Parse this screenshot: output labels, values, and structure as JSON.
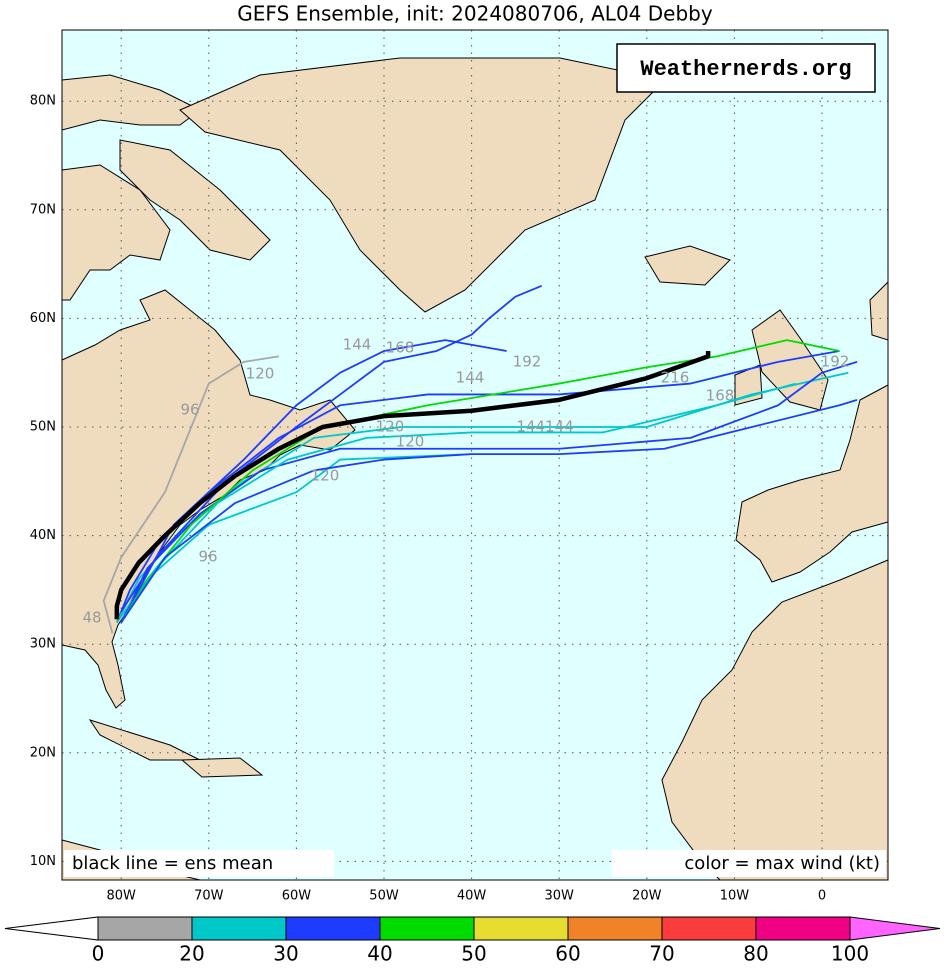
{
  "title": "GEFS Ensemble, init: 2024080706, AL04 Debby",
  "watermark": "Weathernerds.org",
  "notes": {
    "left": "black line = ens mean",
    "right": "color = max wind (kt)"
  },
  "lon_ticks": [
    {
      "value": -80,
      "label": "80W"
    },
    {
      "value": -70,
      "label": "70W"
    },
    {
      "value": -60,
      "label": "60W"
    },
    {
      "value": -50,
      "label": "50W"
    },
    {
      "value": -40,
      "label": "40W"
    },
    {
      "value": -30,
      "label": "30W"
    },
    {
      "value": -20,
      "label": "20W"
    },
    {
      "value": -10,
      "label": "10W"
    },
    0
  ],
  "lat_ticks": [
    {
      "value": 10,
      "label": "10N"
    },
    {
      "value": 20,
      "label": "20N"
    },
    {
      "value": 30,
      "label": "30N"
    },
    {
      "value": 40,
      "label": "40N"
    },
    {
      "value": 50,
      "label": "50N"
    },
    {
      "value": 60,
      "label": "60N"
    },
    {
      "value": 70,
      "label": "70N"
    },
    {
      "value": 80,
      "label": "80N"
    }
  ],
  "colorbar": {
    "levels": [
      0,
      20,
      30,
      40,
      50,
      60,
      70,
      80,
      100
    ],
    "colors": [
      "#ffffff",
      "#a6a6a6",
      "#00c8c8",
      "#1e3cff",
      "#00dc00",
      "#e6dc32",
      "#f08228",
      "#fa3c3c",
      "#f00082",
      "#ff64ff"
    ]
  },
  "hour_labels": [
    "144",
    "168",
    "192",
    "120",
    "96",
    "144",
    "120",
    "120",
    "144144",
    "120",
    "96",
    "216",
    "168",
    "192",
    "48"
  ],
  "mean_track": {
    "lon": [
      -80.5,
      -80.5,
      -80,
      -78,
      -75,
      -71,
      -67,
      -62,
      -57,
      -50,
      -40,
      -30,
      -20,
      -13,
      -13
    ],
    "lat": [
      32.3,
      33.5,
      35,
      37.5,
      40,
      43,
      45.5,
      48,
      50,
      51,
      51.5,
      52.5,
      54.5,
      56.5,
      57
    ]
  },
  "tracks": [
    {
      "color": "#1e3cff",
      "lon": [
        -80.5,
        -79,
        -76,
        -70,
        -62,
        -55,
        -45,
        -30,
        -15,
        -5,
        2
      ],
      "lat": [
        32,
        35,
        39,
        44,
        49,
        52,
        53,
        53,
        54,
        56,
        57
      ]
    },
    {
      "color": "#00c8c8",
      "lon": [
        -80.5,
        -78,
        -73,
        -66,
        -58,
        -48,
        -35,
        -20,
        -8,
        3
      ],
      "lat": [
        32,
        36,
        40.5,
        45,
        49,
        50,
        50,
        50,
        53,
        55
      ]
    },
    {
      "color": "#1e3cff",
      "lon": [
        -80,
        -77,
        -71,
        -64,
        -55,
        -45,
        -30,
        -15,
        -5,
        0,
        4
      ],
      "lat": [
        32,
        37,
        42,
        46,
        48,
        48,
        48,
        49,
        52,
        55,
        56
      ]
    },
    {
      "color": "#a6a6a6",
      "lon": [
        -81,
        -82,
        -80,
        -75,
        -72,
        -70,
        -66,
        -62
      ],
      "lat": [
        31,
        34,
        38,
        44,
        50,
        54,
        56,
        56.5
      ]
    },
    {
      "color": "#00c8c8",
      "lon": [
        -80.5,
        -77,
        -70,
        -60,
        -55,
        -40
      ],
      "lat": [
        32,
        36,
        41,
        44,
        47,
        47.5
      ]
    },
    {
      "color": "#1e3cff",
      "lon": [
        -80,
        -78,
        -74,
        -66,
        -60,
        -55,
        -50,
        -43,
        -36
      ],
      "lat": [
        32,
        35,
        41,
        47,
        52,
        55,
        57,
        58,
        57
      ]
    },
    {
      "color": "#00dc00",
      "lon": [
        -80,
        -77,
        -72,
        -65,
        -57,
        -45,
        -30,
        -20,
        -12,
        -4,
        2
      ],
      "lat": [
        32,
        36,
        41,
        46,
        50,
        52,
        54,
        55.5,
        56.5,
        58,
        57
      ]
    },
    {
      "color": "#1e3cff",
      "lon": [
        -80,
        -76,
        -68,
        -60,
        -55,
        -50,
        -44,
        -40,
        -38,
        -35,
        -32
      ],
      "lat": [
        33,
        38,
        45,
        50,
        53,
        56,
        57,
        58.5,
        60,
        62,
        63
      ]
    },
    {
      "color": "#00c8c8",
      "lon": [
        -80,
        -76,
        -69,
        -61,
        -52,
        -40,
        -25,
        -12,
        -3
      ],
      "lat": [
        32,
        37,
        43,
        47,
        49,
        49.5,
        49.5,
        52,
        54
      ]
    },
    {
      "color": "#1e3cff",
      "lon": [
        -80,
        -75,
        -67,
        -58,
        -50,
        -40,
        -30,
        -18,
        -8,
        2,
        4
      ],
      "lat": [
        32,
        38,
        43,
        46,
        47,
        47.5,
        47.5,
        48,
        50,
        52,
        52.5
      ]
    }
  ]
}
